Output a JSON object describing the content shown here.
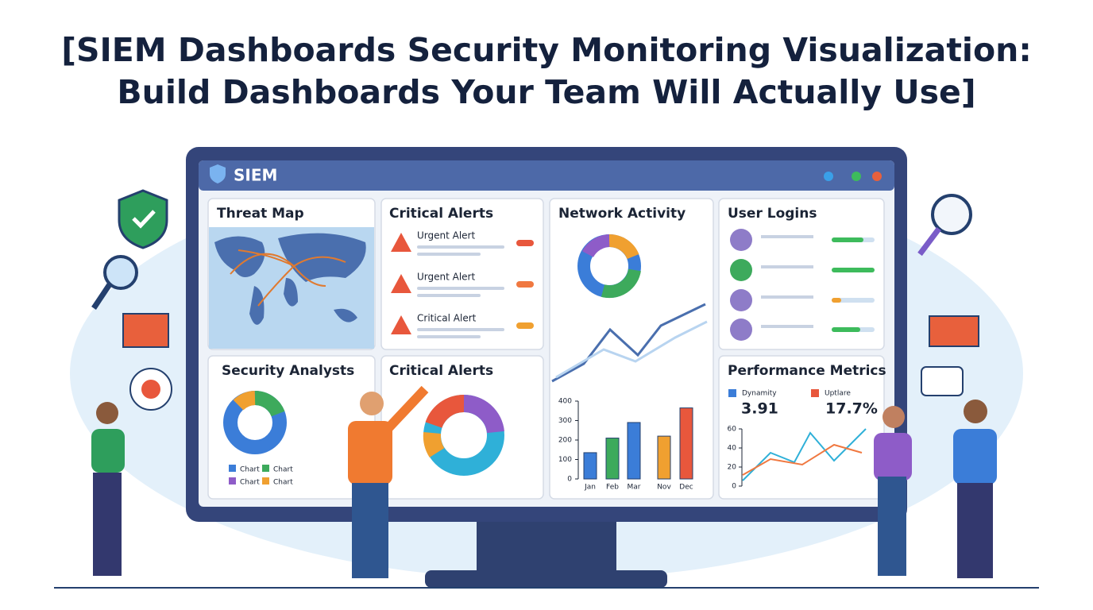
{
  "header": {
    "title_lines": [
      "[SIEM Dashboards Security Monitoring Visualization:",
      "Build Dashboards Your Team Will Actually Use]"
    ]
  },
  "app": {
    "name": "SIEM"
  },
  "panels": {
    "threat_map": {
      "title": "Threat Map"
    },
    "critical_alerts": {
      "title": "Critical Alerts",
      "alerts": [
        "Urgent Alert",
        "Urgent Alert",
        "Critical Alert"
      ]
    },
    "network_activity": {
      "title": "Network Activity",
      "chart": {
        "type": "bar",
        "categories": [
          "Jan",
          "Feb",
          "Mar",
          "Nov",
          "Dec"
        ],
        "values": [
          135,
          210,
          290,
          220,
          365
        ],
        "colors": [
          "#3b7dd8",
          "#3daa5c",
          "#3b7dd8",
          "#f0a030",
          "#e8573c"
        ],
        "ylim": [
          0,
          400
        ],
        "yticks": [
          0,
          100,
          200,
          300,
          400
        ]
      }
    },
    "user_logins": {
      "title": "User Logins"
    },
    "security_analysts": {
      "title": "Security Analysts",
      "legend": [
        "Chart",
        "Chart",
        "Chart",
        "Chart"
      ]
    },
    "critical_alerts_2": {
      "title": "Critical Alerts"
    },
    "performance_metrics": {
      "title": "Performance Metrics",
      "metrics": [
        {
          "label": "Dynamity",
          "value": "3.91"
        },
        {
          "label": "Uptlare",
          "value": "17.7%"
        }
      ],
      "ylim": [
        0,
        60
      ],
      "yticks": [
        0,
        20,
        40,
        60
      ]
    }
  }
}
